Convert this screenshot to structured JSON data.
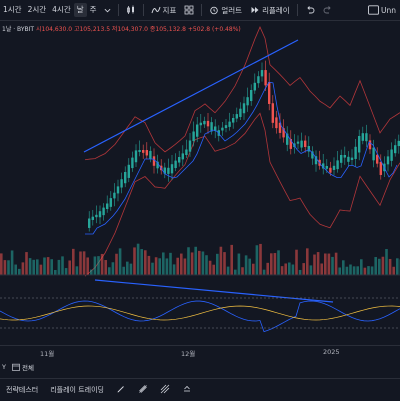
{
  "toolbar": {
    "timeframes": [
      "1시간",
      "2시간",
      "4시간",
      "날",
      "주"
    ],
    "active_timeframe": "날",
    "indicators_label": "지표",
    "alert_label": "얼러트",
    "replay_label": "리플레이",
    "unnamed_label": "Unn"
  },
  "legend": {
    "symbol": "1날 · BYBIT",
    "ohlc": "시104,630.0 고105,213.5 저104,307.0 종105,132.8 +502.8 (+0.48%)"
  },
  "xaxis": {
    "labels": [
      "11월",
      "12월",
      "2025"
    ]
  },
  "range": {
    "timezone_prefix": "Y",
    "all_label": "전체"
  },
  "bottom": {
    "strategy_tester": "전략테스터",
    "replay_trading": "리플레이 트레이딩"
  },
  "colors": {
    "up": "#26a69a",
    "down": "#ef5350",
    "band": "#b2363a",
    "trendline": "#2962ff",
    "bg": "#131722"
  }
}
